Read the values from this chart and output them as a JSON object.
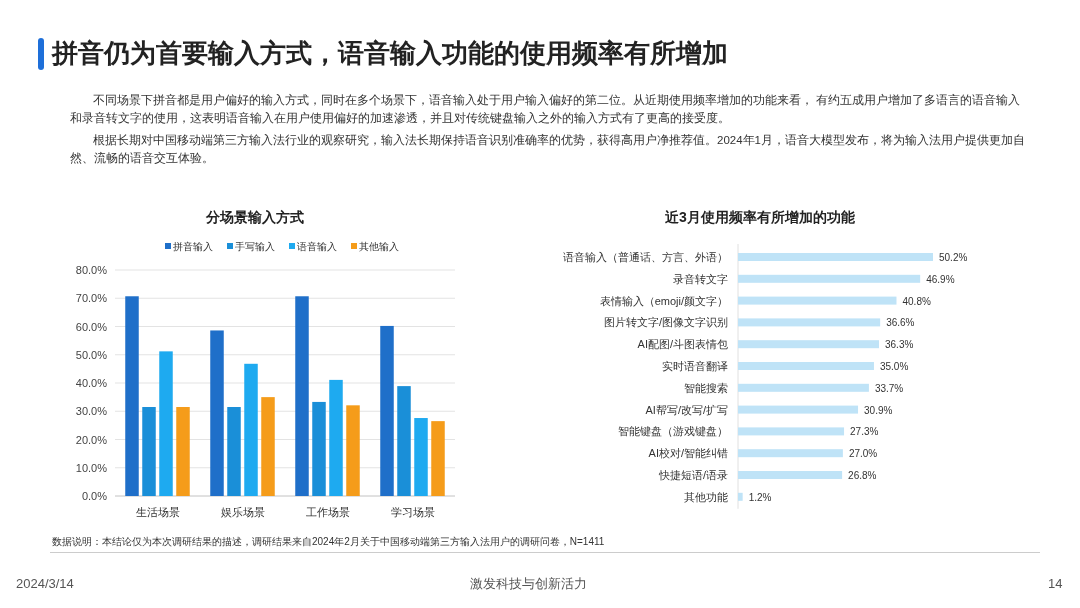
{
  "chart_data": [
    {
      "type": "other",
      "title": "拼音仍为首要输入方式，语音输入功能的使用频率有所增加",
      "annotations": [
        "不同场景下拼音都是用户偏好的输入方式，同时在多个场景下，语音输入处于用户输入偏好的第二位。从近期使用频率增加的功能来看， 有约五成用户增加了多语言的语音输入和录音转文字的使用，这表明语音输入在用户使用偏好的加速渗透，并且对传统键盘输入之外的输入方式有了更高的接受度。",
        "根据长期对中国移动端第三方输入法行业的观察研究，输入法长期保持语音识别准确率的优势，获得高用户净推荐值。2024年1月，语音大模型发布，将为输入法用户提供更加自然、流畅的语音交互体验。",
        "2024/3/14",
        "激发科技与创新活力",
        "14"
      ]
    },
    {
      "type": "bar",
      "title": "分场景输入方式",
      "categories": [
        "生活场景",
        "娱乐场景",
        "工作场景",
        "学习场景"
      ],
      "series": [
        {
          "name": "拼音输入",
          "color": "#1f6fc9",
          "values": [
            70.7,
            58.6,
            70.7,
            60.2
          ]
        },
        {
          "name": "手写输入",
          "color": "#1a8fd8",
          "values": [
            31.5,
            31.5,
            33.3,
            38.9
          ]
        },
        {
          "name": "语音输入",
          "color": "#1eaaf0",
          "values": [
            51.2,
            46.8,
            41.1,
            27.6
          ]
        },
        {
          "name": "其他输入",
          "color": "#f59c1a",
          "values": [
            31.5,
            35.0,
            32.1,
            26.5
          ]
        }
      ],
      "ylim": [
        0,
        80
      ],
      "yticks": [
        {
          "value": 0,
          "label": "0.0%"
        },
        {
          "value": 10,
          "label": "10.0%"
        },
        {
          "value": 20,
          "label": "20.0%"
        },
        {
          "value": 30,
          "label": "30.0%"
        },
        {
          "value": 40,
          "label": "40.0%"
        },
        {
          "value": 50,
          "label": "50.0%"
        },
        {
          "value": 60,
          "label": "60.0%"
        },
        {
          "value": 70,
          "label": "70.0%"
        },
        {
          "value": 80,
          "label": "80.0%"
        }
      ],
      "grid": "y",
      "legend": "top",
      "annotations": [
        "数据说明：本结论仅为本次调研结果的描述，调研结果来自2024年2月关于中国移动端第三方输入法用户的调研问卷，N=1411"
      ]
    },
    {
      "type": "bar",
      "orientation": "horizontal",
      "title": "近3月使用频率有所增加的功能",
      "categories": [
        "语音输入（普通话、方言、外语）",
        "录音转文字",
        "表情输入（emoji/颜文字）",
        "图片转文字/图像文字识别",
        "AI配图/斗图表情包",
        "实时语音翻译",
        "智能搜索",
        "AI帮写/改写/扩写",
        "智能键盘（游戏键盘）",
        "AI校对/智能纠错",
        "快捷短语/语录",
        "其他功能"
      ],
      "values": [
        50.2,
        46.9,
        40.8,
        36.6,
        36.3,
        35.0,
        33.7,
        30.9,
        27.3,
        27.0,
        26.8,
        1.2
      ],
      "color": "#bfe3f7",
      "data_labels": true,
      "value_labels": [
        "50.2%",
        "46.9%",
        "40.8%",
        "36.6%",
        "36.3%",
        "35.0%",
        "33.7%",
        "30.9%",
        "27.3%",
        "27.0%",
        "26.8%",
        "1.2%"
      ]
    }
  ]
}
